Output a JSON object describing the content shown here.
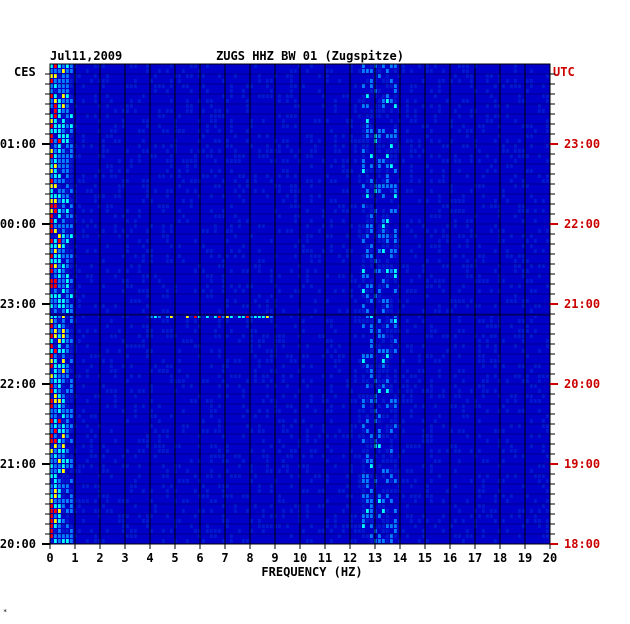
{
  "chart_data": {
    "type": "heatmap",
    "date": "Jul11,2009",
    "title": "ZUGS HHZ BW 01 (Zugspitze)",
    "left_axis_label": "CES",
    "right_axis_label": "UTC",
    "xlabel": "FREQUENCY (HZ)",
    "xlim": [
      0,
      20
    ],
    "x_ticks": [
      "0",
      "1",
      "2",
      "3",
      "4",
      "5",
      "6",
      "7",
      "8",
      "9",
      "10",
      "11",
      "12",
      "13",
      "14",
      "15",
      "16",
      "17",
      "18",
      "19",
      "20"
    ],
    "left_time_ticks": [
      "01:00",
      "00:00",
      "23:00",
      "22:00",
      "21:00",
      "20:00"
    ],
    "right_time_ticks": [
      "23:00",
      "22:00",
      "21:00",
      "20:00",
      "19:00",
      "18:00"
    ],
    "colors": {
      "background": "#0000c8",
      "low": "#0018d0",
      "mid": "#0080ff",
      "high": "#00ffff",
      "peak": "#ffff00",
      "max": "#ff0000",
      "grid": "#000000",
      "utc_text": "#cc0000"
    },
    "features": [
      {
        "note": "strong energy near 0-1 Hz throughout"
      },
      {
        "note": "bright band around 12.5-14 Hz"
      },
      {
        "note": "broadband event near 23:00 CES / 21:00 UTC"
      }
    ]
  },
  "corner_mark": "*"
}
